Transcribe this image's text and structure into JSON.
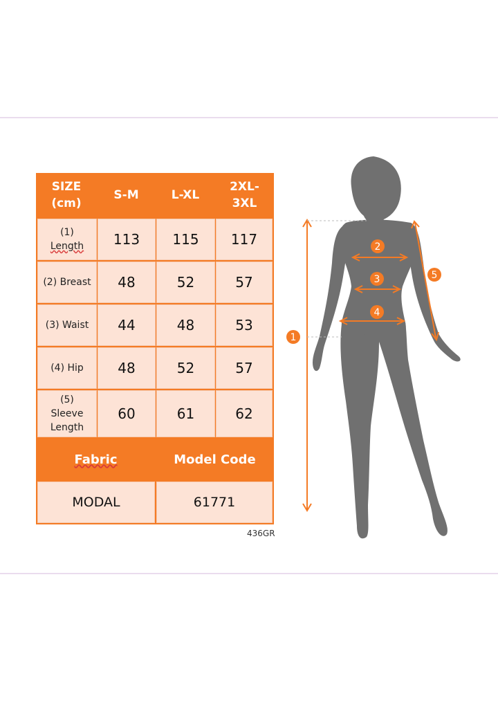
{
  "header": {
    "size_lines": [
      "SIZE",
      "(cm)"
    ],
    "columns": [
      [
        "S-M"
      ],
      [
        "L-XL"
      ],
      [
        "2XL-",
        "3XL"
      ]
    ]
  },
  "rows": [
    {
      "label_lines": [
        "(1)",
        "Length"
      ],
      "values": [
        "113",
        "115",
        "117"
      ]
    },
    {
      "label_lines": [
        "(2) Breast"
      ],
      "values": [
        "48",
        "52",
        "57"
      ]
    },
    {
      "label_lines": [
        "(3) Waist"
      ],
      "values": [
        "44",
        "48",
        "53"
      ]
    },
    {
      "label_lines": [
        "(4) Hip"
      ],
      "values": [
        "48",
        "52",
        "57"
      ]
    },
    {
      "label_lines": [
        "(5)",
        "Sleeve",
        "Length"
      ],
      "values": [
        "60",
        "61",
        "62"
      ]
    }
  ],
  "fabric": {
    "fabric_label": "Fabric",
    "model_code_label": "Model Code",
    "fabric_value": "MODAL",
    "model_code_value": "61771"
  },
  "product_code": "436GR",
  "markers": [
    "1",
    "2",
    "3",
    "4",
    "5"
  ],
  "colors": {
    "accent": "#f47b25",
    "cell_bg": "#fde3d6",
    "silhouette": "#6e6e6e"
  }
}
